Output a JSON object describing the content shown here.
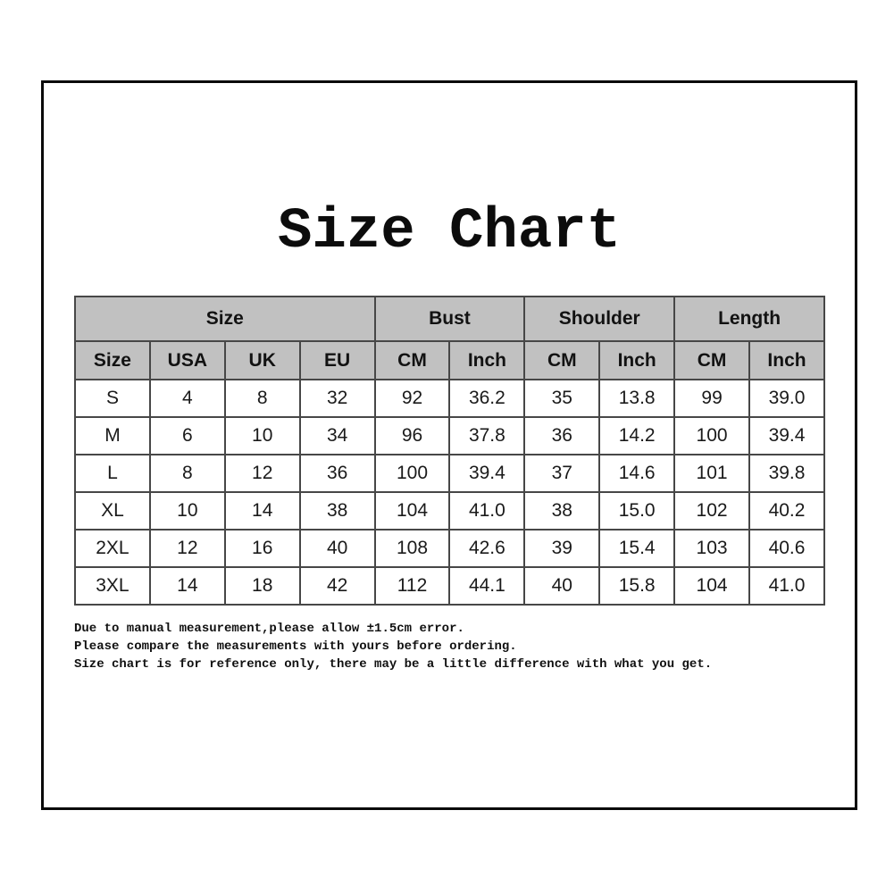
{
  "title": "Size Chart",
  "chart_data": {
    "type": "table",
    "title": "Size Chart",
    "group_headers": [
      {
        "label": "Size",
        "span": 4
      },
      {
        "label": "Bust",
        "span": 2
      },
      {
        "label": "Shoulder",
        "span": 2
      },
      {
        "label": "Length",
        "span": 2
      }
    ],
    "columns": [
      "Size",
      "USA",
      "UK",
      "EU",
      "CM",
      "Inch",
      "CM",
      "Inch",
      "CM",
      "Inch"
    ],
    "rows": [
      [
        "S",
        "4",
        "8",
        "32",
        "92",
        "36.2",
        "35",
        "13.8",
        "99",
        "39.0"
      ],
      [
        "M",
        "6",
        "10",
        "34",
        "96",
        "37.8",
        "36",
        "14.2",
        "100",
        "39.4"
      ],
      [
        "L",
        "8",
        "12",
        "36",
        "100",
        "39.4",
        "37",
        "14.6",
        "101",
        "39.8"
      ],
      [
        "XL",
        "10",
        "14",
        "38",
        "104",
        "41.0",
        "38",
        "15.0",
        "102",
        "40.2"
      ],
      [
        "2XL",
        "12",
        "16",
        "40",
        "108",
        "42.6",
        "39",
        "15.4",
        "103",
        "40.6"
      ],
      [
        "3XL",
        "14",
        "18",
        "42",
        "112",
        "44.1",
        "40",
        "15.8",
        "104",
        "41.0"
      ]
    ]
  },
  "notes": [
    "Due to manual measurement,please allow ±1.5cm error.",
    "Please compare the measurements with yours before ordering.",
    "Size chart is for reference only, there may be a little difference with what you get."
  ],
  "colors": {
    "header_background": "#c1c1c1",
    "table_border": "#474747",
    "frame_border": "#0a0a0a",
    "text": "#141414",
    "page_background": "#ffffff"
  }
}
